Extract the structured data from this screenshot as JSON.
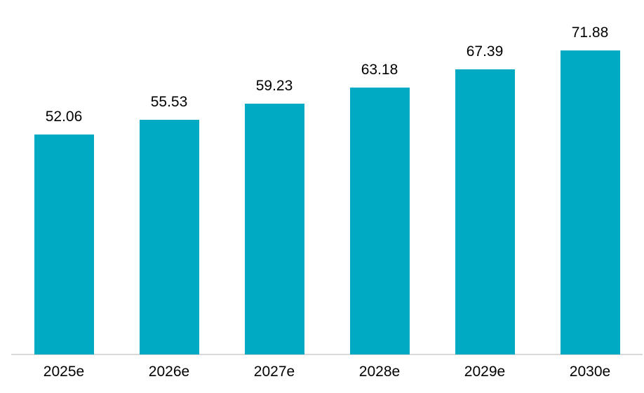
{
  "chart_data": {
    "type": "bar",
    "categories": [
      "2025e",
      "2026e",
      "2027e",
      "2028e",
      "2029e",
      "2030e"
    ],
    "values": [
      52.06,
      55.53,
      59.23,
      63.18,
      67.39,
      71.88
    ],
    "value_labels": [
      "52.06",
      "55.53",
      "59.23",
      "63.18",
      "67.39",
      "71.88"
    ],
    "title": "",
    "xlabel": "",
    "ylabel": "",
    "ylim": [
      0,
      83.8
    ],
    "grid": false,
    "legend": false,
    "data_labels_position": "above-bars",
    "bar_color": "#00aac3",
    "axis_line_color": "#d9d9d9",
    "label_color": "#000000"
  }
}
